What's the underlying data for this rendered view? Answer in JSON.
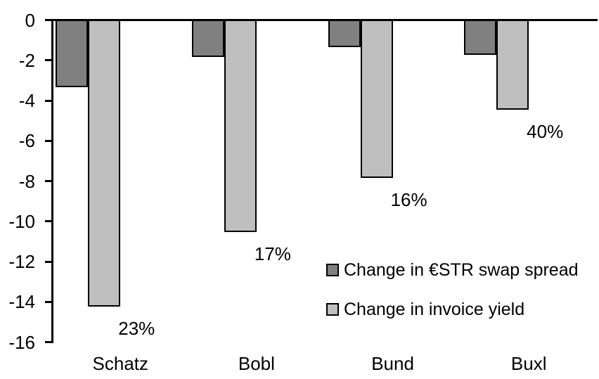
{
  "chart_data": {
    "type": "bar",
    "title": "",
    "xlabel": "",
    "ylabel": "",
    "categories": [
      "Schatz",
      "Bobl",
      "Bund",
      "Buxl"
    ],
    "series": [
      {
        "name": "Change in €STR swap spread",
        "color": "#808080",
        "values": [
          -3.3,
          -1.8,
          -1.3,
          -1.7
        ]
      },
      {
        "name": "Change in invoice yield",
        "color": "#BFBFBF",
        "values": [
          -14.2,
          -10.5,
          -7.8,
          -4.4
        ]
      }
    ],
    "bar_labels": [
      "23%",
      "17%",
      "16%",
      "40%"
    ],
    "ylim": [
      -16,
      0
    ],
    "yticks": [
      0,
      -2,
      -4,
      -6,
      -8,
      -10,
      -12,
      -14,
      -16
    ],
    "grid": false,
    "legend_position": "inside-right",
    "axis_color": "#000000",
    "background_color": "#FFFFFF"
  }
}
